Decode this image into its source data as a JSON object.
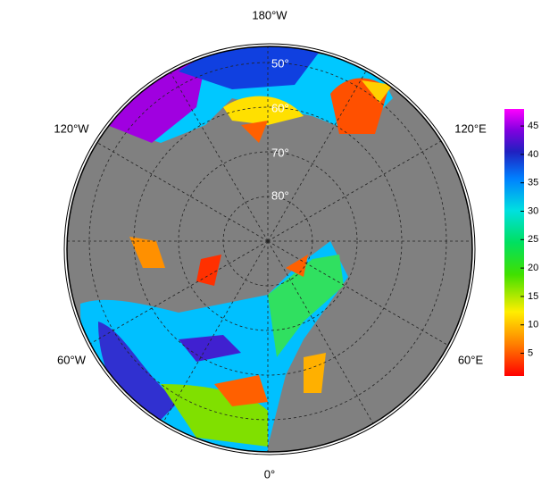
{
  "map": {
    "longitude_labels": [
      "180°W",
      "120°W",
      "120°E",
      "60°W",
      "60°E",
      "0°"
    ],
    "latitude_labels": [
      "50°",
      "60°",
      "70°",
      "80°"
    ],
    "colorbar": {
      "range": [
        1,
        48
      ],
      "ticks": [
        5,
        10,
        15,
        20,
        25,
        30,
        35,
        40,
        45
      ]
    }
  }
}
